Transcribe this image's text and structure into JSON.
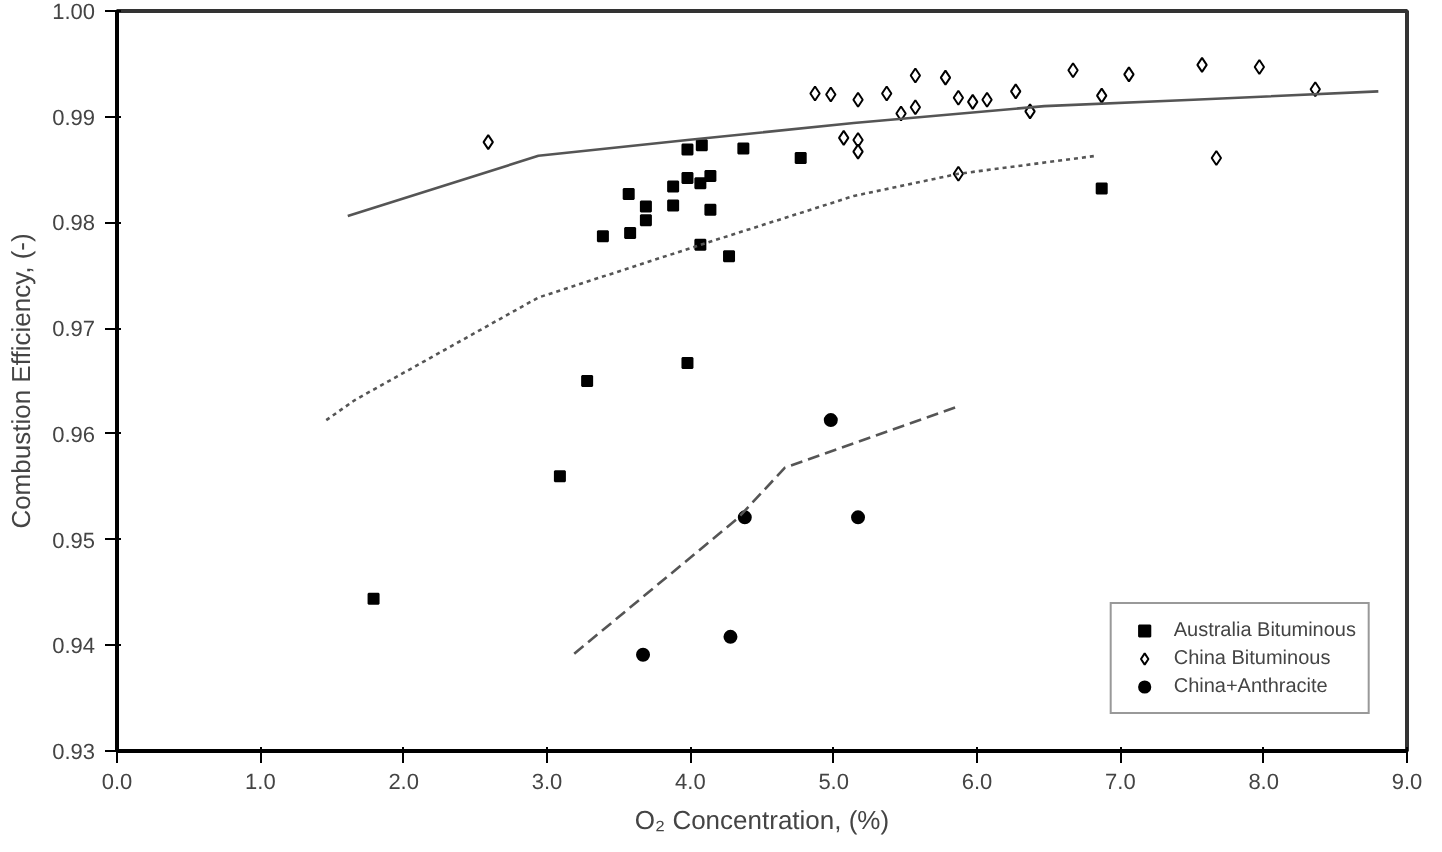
{
  "chart_data": {
    "type": "scatter",
    "xlabel": "O₂ Concentration, (%)",
    "ylabel": "Combustion Efficiency, (-)",
    "xlim": [
      0,
      9
    ],
    "ylim": [
      0.93,
      1.0
    ],
    "xticks": [
      {
        "value": 0,
        "label": "0.0"
      },
      {
        "value": 1,
        "label": "1.0"
      },
      {
        "value": 2,
        "label": "2.0"
      },
      {
        "value": 3,
        "label": "3.0"
      },
      {
        "value": 4,
        "label": "4.0"
      },
      {
        "value": 5,
        "label": "5.0"
      },
      {
        "value": 6,
        "label": "6.0"
      },
      {
        "value": 7,
        "label": "7.0"
      },
      {
        "value": 8,
        "label": "8.0"
      },
      {
        "value": 9,
        "label": "9.0"
      }
    ],
    "yticks": [
      0.93,
      0.94,
      0.95,
      0.96,
      0.97,
      0.98,
      0.99,
      {
        "value": 1.0,
        "label": "1.00"
      }
    ],
    "grid": false,
    "legend": "bottom right",
    "series": [
      {
        "name": "Australia Bituminous",
        "color": "#000000",
        "marker": "square",
        "x": [
          3.98,
          4.08,
          3.57,
          3.69,
          3.69,
          3.39,
          3.58,
          3.88,
          3.88,
          3.98,
          4.07,
          4.14,
          4.14,
          4.07,
          4.27,
          3.28,
          3.98,
          4.37,
          4.77,
          6.87,
          3.09,
          1.79
        ],
        "values": [
          0.9869,
          0.9873,
          0.9827,
          0.9815,
          0.9802,
          0.9787,
          0.979,
          0.9834,
          0.9816,
          0.9842,
          0.9837,
          0.9844,
          0.9812,
          0.9779,
          0.9768,
          0.965,
          0.9667,
          0.987,
          0.9861,
          0.9832,
          0.956,
          0.9444
        ]
      },
      {
        "name": "China Bituminous",
        "color": "#000000",
        "marker": "diamond",
        "x": [
          2.59,
          4.87,
          4.98,
          5.17,
          5.37,
          5.57,
          5.78,
          5.47,
          5.57,
          5.87,
          5.97,
          6.07,
          6.27,
          6.37,
          6.67,
          6.87,
          7.06,
          7.57,
          7.97,
          8.36,
          7.67,
          5.87,
          5.07,
          5.17,
          5.17
        ],
        "values": [
          0.9876,
          0.9922,
          0.9921,
          0.9916,
          0.9922,
          0.9939,
          0.9937,
          0.9903,
          0.9909,
          0.9918,
          0.9914,
          0.9916,
          0.9924,
          0.9905,
          0.9944,
          0.992,
          0.994,
          0.9949,
          0.9947,
          0.9926,
          0.9861,
          0.9846,
          0.988,
          0.9878,
          0.9867
        ]
      },
      {
        "name": "China+Anthracite",
        "color": "#000000",
        "marker": "circle",
        "x": [
          4.98,
          4.38,
          5.17,
          4.28,
          3.67
        ],
        "values": [
          0.9613,
          0.9521,
          0.9521,
          0.9408,
          0.9391
        ]
      },
      {
        "type": "line",
        "color": "#555555",
        "line_style": "solid",
        "x": [
          1.61,
          2.94,
          3.98,
          5.14,
          6.47,
          7.51,
          8.8
        ],
        "values": [
          0.9806,
          0.9863,
          0.9878,
          0.9894,
          0.991,
          0.9916,
          0.9924
        ]
      },
      {
        "type": "line",
        "color": "#555555",
        "line_style": "dotted",
        "x": [
          1.46,
          1.66,
          2.94,
          4.19,
          5.14,
          5.87,
          6.83
        ],
        "values": [
          0.9613,
          0.9632,
          0.9729,
          0.9784,
          0.9825,
          0.9846,
          0.9863
        ]
      },
      {
        "type": "line",
        "color": "#555555",
        "line_style": "dashed",
        "x": [
          3.19,
          4.33,
          4.66,
          5.87
        ],
        "values": [
          0.9392,
          0.952,
          0.9568,
          0.9626
        ]
      }
    ]
  }
}
